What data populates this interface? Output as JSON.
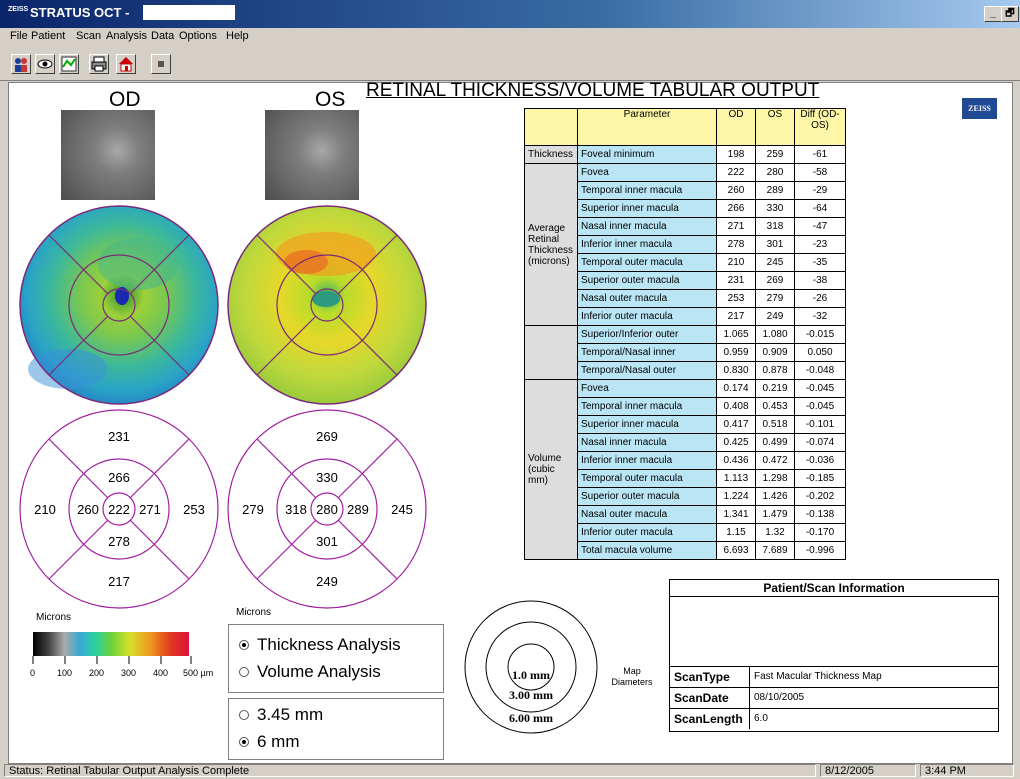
{
  "window": {
    "app_title": "STRATUS OCT -",
    "logo_text": "ZEISS",
    "controls": {
      "minimize": "_",
      "restore": "🗗"
    }
  },
  "menu": [
    "File",
    "Patient",
    "Scan",
    "Analysis",
    "Data",
    "Options",
    "Help"
  ],
  "toolbar": {
    "icons": [
      "patients-icon",
      "eye-icon",
      "scan-icon",
      "printer-icon",
      "home-icon",
      "stop-icon"
    ]
  },
  "report": {
    "title": "RETINAL THICKNESS/VOLUME TABULAR OUTPUT",
    "od_label": "OD",
    "os_label": "OS",
    "zeiss": "ZEISS"
  },
  "sector_maps": {
    "od": {
      "center": "222",
      "inner_sup": "266",
      "inner_temp": "260",
      "inner_nasal": "271",
      "inner_inf": "278",
      "outer_sup": "231",
      "outer_left": "210",
      "outer_right": "253",
      "outer_inf": "217"
    },
    "os": {
      "center": "280",
      "inner_sup": "330",
      "inner_temp": "318",
      "inner_nasal": "289",
      "inner_inf": "301",
      "outer_sup": "269",
      "outer_left": "279",
      "outer_right": "245",
      "outer_inf": "249"
    }
  },
  "colorbar": {
    "label": "Microns",
    "ticks": [
      "0",
      "100",
      "200",
      "300",
      "400",
      "500 µm"
    ]
  },
  "analysis": {
    "label": "Microns",
    "thickness": "Thickness Analysis",
    "volume": "Volume Analysis",
    "selected_analysis": "Thickness Analysis",
    "scale_a": "3.45 mm",
    "scale_b": "6 mm",
    "selected_scale": "6 mm"
  },
  "map_diameters": {
    "label": "Map Diameters",
    "inner": "1.0 mm",
    "middle": "3.00 mm",
    "outer": "6.00 mm"
  },
  "table": {
    "headers": {
      "parameter": "Parameter",
      "od": "OD",
      "os": "OS",
      "diff": "Diff (OD-OS)"
    },
    "groups": {
      "thickness": "Thickness",
      "avg": "Average Retinal Thickness (microns)",
      "volume": "Volume (cubic mm)"
    },
    "rows": [
      [
        "Foveal minimum",
        "198",
        "259",
        "-61"
      ],
      [
        "Fovea",
        "222",
        "280",
        "-58"
      ],
      [
        "Temporal inner macula",
        "260",
        "289",
        "-29"
      ],
      [
        "Superior inner macula",
        "266",
        "330",
        "-64"
      ],
      [
        "Nasal inner macula",
        "271",
        "318",
        "-47"
      ],
      [
        "Inferior inner macula",
        "278",
        "301",
        "-23"
      ],
      [
        "Temporal outer macula",
        "210",
        "245",
        "-35"
      ],
      [
        "Superior outer macula",
        "231",
        "269",
        "-38"
      ],
      [
        "Nasal outer macula",
        "253",
        "279",
        "-26"
      ],
      [
        "Inferior outer macula",
        "217",
        "249",
        "-32"
      ],
      [
        "Superior/Inferior outer",
        "1.065",
        "1.080",
        "-0.015"
      ],
      [
        "Temporal/Nasal inner",
        "0.959",
        "0.909",
        "0.050"
      ],
      [
        "Temporal/Nasal outer",
        "0.830",
        "0.878",
        "-0.048"
      ],
      [
        "Fovea",
        "0.174",
        "0.219",
        "-0.045"
      ],
      [
        "Temporal inner macula",
        "0.408",
        "0.453",
        "-0.045"
      ],
      [
        "Superior inner macula",
        "0.417",
        "0.518",
        "-0.101"
      ],
      [
        "Nasal inner macula",
        "0.425",
        "0.499",
        "-0.074"
      ],
      [
        "Inferior inner macula",
        "0.436",
        "0.472",
        "-0.036"
      ],
      [
        "Temporal outer macula",
        "1.113",
        "1.298",
        "-0.185"
      ],
      [
        "Superior outer macula",
        "1.224",
        "1.426",
        "-0.202"
      ],
      [
        "Nasal outer macula",
        "1.341",
        "1.479",
        "-0.138"
      ],
      [
        "Inferior outer macula",
        "1.15",
        "1.32",
        "-0.170"
      ],
      [
        "Total macula volume",
        "6.693",
        "7.689",
        "-0.996"
      ]
    ]
  },
  "patient_info": {
    "title": "Patient/Scan Information",
    "scan_type_label": "ScanType",
    "scan_type": "Fast Macular Thickness Map",
    "scan_date_label": "ScanDate",
    "scan_date": "08/10/2005",
    "scan_length_label": "ScanLength",
    "scan_length": "6.0"
  },
  "status": {
    "message": "Status: Retinal Tabular Output Analysis Complete",
    "date": "8/12/2005",
    "time": "3:44 PM"
  }
}
